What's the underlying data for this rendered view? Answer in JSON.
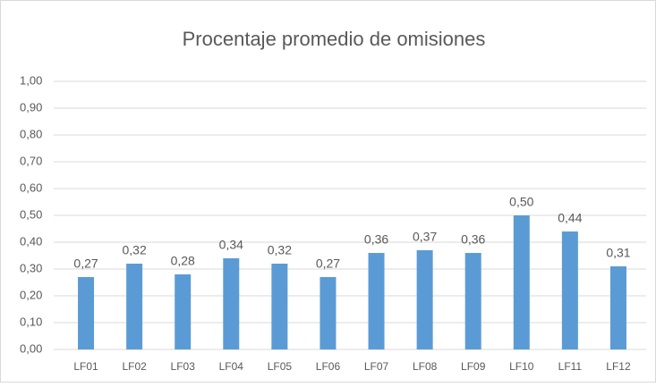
{
  "chart_data": {
    "type": "bar",
    "title": "Procentaje promedio de omisiones",
    "categories": [
      "LF01",
      "LF02",
      "LF03",
      "LF04",
      "LF05",
      "LF06",
      "LF07",
      "LF08",
      "LF09",
      "LF10",
      "LF11",
      "LF12"
    ],
    "values": [
      0.27,
      0.32,
      0.28,
      0.34,
      0.32,
      0.27,
      0.36,
      0.37,
      0.36,
      0.5,
      0.44,
      0.31
    ],
    "value_labels": [
      "0,27",
      "0,32",
      "0,28",
      "0,34",
      "0,32",
      "0,27",
      "0,36",
      "0,37",
      "0,36",
      "0,50",
      "0,44",
      "0,31"
    ],
    "color": "#5b9bd5",
    "ylim": [
      0,
      1
    ],
    "yticks": [
      {
        "value": 0,
        "label": "0,00"
      },
      {
        "value": 0.1,
        "label": "0,10"
      },
      {
        "value": 0.2,
        "label": "0,20"
      },
      {
        "value": 0.3,
        "label": "0,30"
      },
      {
        "value": 0.4,
        "label": "0,40"
      },
      {
        "value": 0.5,
        "label": "0,50"
      },
      {
        "value": 0.6,
        "label": "0,60"
      },
      {
        "value": 0.7,
        "label": "0,70"
      },
      {
        "value": 0.8,
        "label": "0,80"
      },
      {
        "value": 0.9,
        "label": "0,90"
      },
      {
        "value": 1,
        "label": "1,00"
      }
    ],
    "grid": true
  }
}
